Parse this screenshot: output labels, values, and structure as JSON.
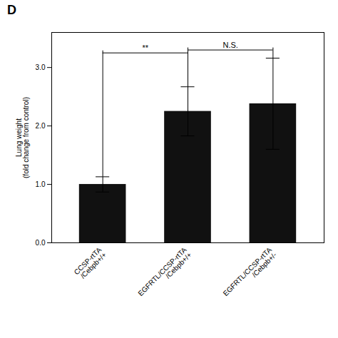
{
  "chart_data": {
    "type": "bar",
    "title": "D",
    "ylabel": "Lung weight\n(fold change from control)",
    "categories": [
      "CCSP-rtTA\n/Cebpb+/+",
      "EGFRTL/CCSP-rtTA\n/Cebpb+/+",
      "EGFRTL/CCSP-rtTA\n/Cebpb+/-"
    ],
    "values": [
      1.0,
      2.25,
      2.38
    ],
    "errors": [
      0.13,
      0.42,
      0.78
    ],
    "color": "#111111",
    "ylim": [
      0,
      3.6
    ],
    "yticks": [
      0,
      1,
      2,
      3
    ],
    "grid": false,
    "annotations": [
      {
        "text": "**",
        "between": [
          0,
          1
        ],
        "y": 3.25
      },
      {
        "text": "N.S.",
        "between": [
          1,
          2
        ],
        "y": 3.3
      }
    ]
  }
}
